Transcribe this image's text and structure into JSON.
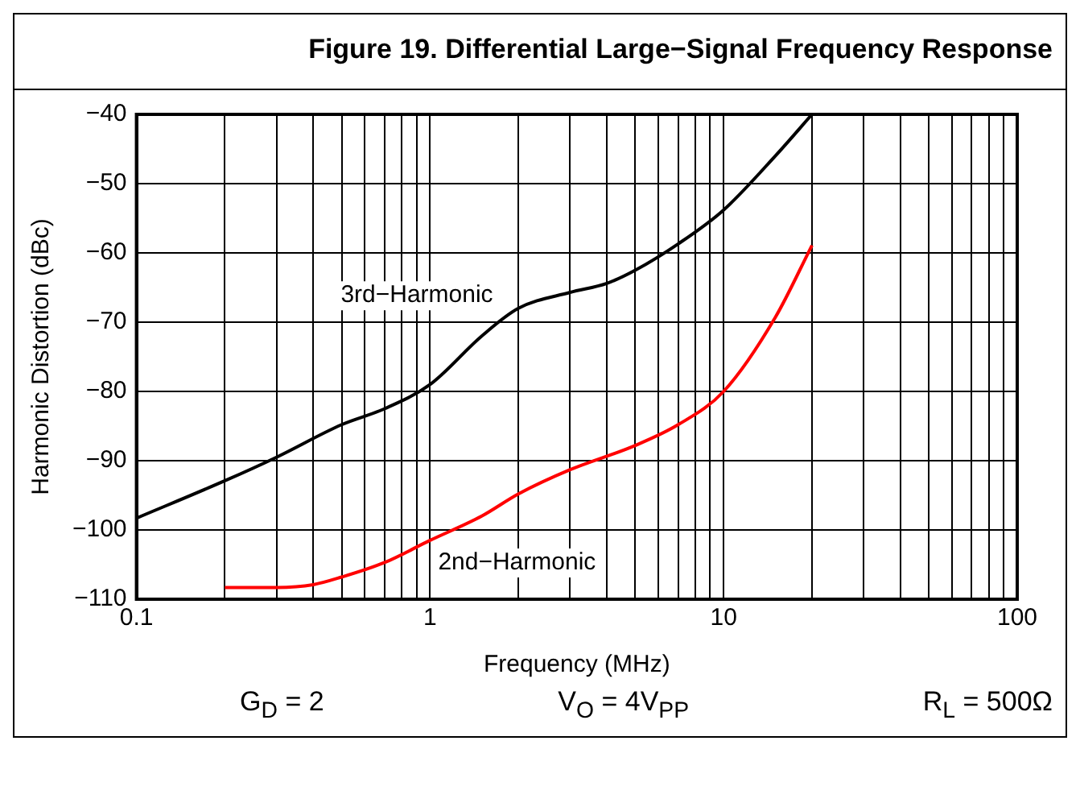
{
  "chart_data": {
    "type": "line",
    "title": "Figure 19. Differential Large−Signal Frequency Response",
    "xlabel": "Frequency (MHz)",
    "ylabel": "Harmonic Distortion (dBc)",
    "log": "x",
    "grid": true,
    "legend": false,
    "marker": "none",
    "line_style": "solid",
    "xlim": [
      0.1,
      100
    ],
    "ylim": [
      -110,
      -40
    ],
    "xticks": [
      0.1,
      {
        "value": 0.2,
        "label": null
      },
      {
        "value": 0.3,
        "label": null
      },
      {
        "value": 0.4,
        "label": null
      },
      {
        "value": 0.5,
        "label": null
      },
      {
        "value": 0.6,
        "label": null
      },
      {
        "value": 0.7,
        "label": null
      },
      {
        "value": 0.8,
        "label": null
      },
      {
        "value": 0.9,
        "label": null
      },
      1,
      {
        "value": 2,
        "label": null
      },
      {
        "value": 3,
        "label": null
      },
      {
        "value": 4,
        "label": null
      },
      {
        "value": 5,
        "label": null
      },
      {
        "value": 6,
        "label": null
      },
      {
        "value": 7,
        "label": null
      },
      {
        "value": 8,
        "label": null
      },
      {
        "value": 9,
        "label": null
      },
      10,
      {
        "value": 20,
        "label": null
      },
      {
        "value": 30,
        "label": null
      },
      {
        "value": 40,
        "label": null
      },
      {
        "value": 50,
        "label": null
      },
      {
        "value": 60,
        "label": null
      },
      {
        "value": 70,
        "label": null
      },
      {
        "value": 80,
        "label": null
      },
      {
        "value": 90,
        "label": null
      },
      100
    ],
    "yticks": [
      {
        "value": -110,
        "label": "−110"
      },
      {
        "value": -100,
        "label": "−100"
      },
      {
        "value": -90,
        "label": "−90"
      },
      {
        "value": -80,
        "label": "−80"
      },
      {
        "value": -70,
        "label": "−70"
      },
      {
        "value": -60,
        "label": "−60"
      },
      {
        "value": -50,
        "label": "−50"
      },
      {
        "value": -40,
        "label": "−40"
      }
    ],
    "series": [
      {
        "name": "3rd−Harmonic",
        "color": "#000000",
        "x": [
          0.1,
          0.2,
          0.3,
          0.5,
          0.7,
          1,
          1.5,
          2,
          3,
          4,
          5,
          7,
          10,
          15,
          20
        ],
        "values": [
          -98.3,
          -92.9,
          -89.5,
          -84.8,
          -82.5,
          -79,
          -72,
          -68,
          -65.7,
          -64.4,
          -62.5,
          -58.7,
          -53.8,
          -46,
          -40
        ]
      },
      {
        "name": "2nd−Harmonic",
        "color": "#ff0000",
        "x": [
          0.2,
          0.3,
          0.4,
          0.5,
          0.7,
          1,
          1.5,
          2,
          3,
          5,
          7,
          10,
          15,
          20
        ],
        "values": [
          -108.3,
          -108.3,
          -107.9,
          -106.8,
          -104.7,
          -101.5,
          -98,
          -94.8,
          -91.3,
          -87.8,
          -84.8,
          -80,
          -69.3,
          -58.9
        ]
      }
    ],
    "annotations": [
      "G$_{D}$ = 2",
      "V$_{O}$ = 4V$_{PP}$",
      "R$_{L}$ = 500Ω"
    ]
  }
}
